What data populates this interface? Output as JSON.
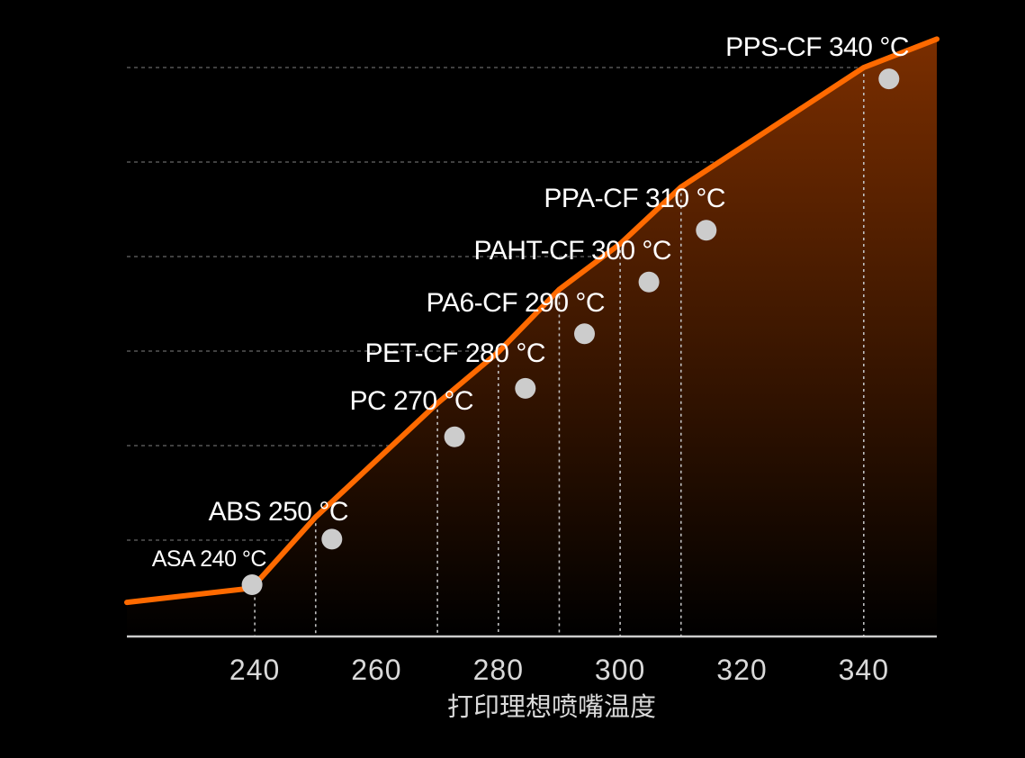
{
  "chart_data": {
    "type": "line",
    "title": "",
    "xlabel": "打印理想喷嘴温度",
    "ylabel": "",
    "x_ticks": [
      240,
      260,
      280,
      300,
      320,
      340
    ],
    "xlim": [
      219,
      352
    ],
    "grid": true,
    "colors": {
      "line": "#ff6a00",
      "area_top": "#7a2e00",
      "area_bottom": "#000000",
      "point": "#cccccc",
      "grid": "#555555",
      "axis": "#cccccc"
    },
    "line_points": [
      {
        "x": 219,
        "y": 0.06
      },
      {
        "x": 239.5,
        "y": 0.085
      },
      {
        "x": 250,
        "y": 0.21
      },
      {
        "x": 270,
        "y": 0.41
      },
      {
        "x": 280,
        "y": 0.5
      },
      {
        "x": 290,
        "y": 0.61
      },
      {
        "x": 300,
        "y": 0.69
      },
      {
        "x": 310,
        "y": 0.79
      },
      {
        "x": 340,
        "y": 1.0
      },
      {
        "x": 352,
        "y": 1.05
      }
    ],
    "materials": [
      {
        "name": "ASA",
        "temp": 240,
        "label": "ASA 240 °C",
        "y": 0.091
      },
      {
        "name": "ABS",
        "temp": 250,
        "label": "ABS 250 °C",
        "y": 0.171
      },
      {
        "name": "PC",
        "temp": 270,
        "label": "PC 270 °C",
        "y": 0.351
      },
      {
        "name": "PET-CF",
        "temp": 280,
        "label": "PET-CF 280 °C",
        "y": 0.436
      },
      {
        "name": "PA6-CF",
        "temp": 290,
        "label": "PA6-CF 290 °C",
        "y": 0.532
      },
      {
        "name": "PAHT-CF",
        "temp": 300,
        "label": "PAHT-CF 300 °C",
        "y": 0.623
      },
      {
        "name": "PPA-CF",
        "temp": 310,
        "label": "PPA-CF 310 °C",
        "y": 0.714
      },
      {
        "name": "PPS-CF",
        "temp": 340,
        "label": "PPS-CF 340 °C",
        "y": 0.98
      }
    ]
  }
}
